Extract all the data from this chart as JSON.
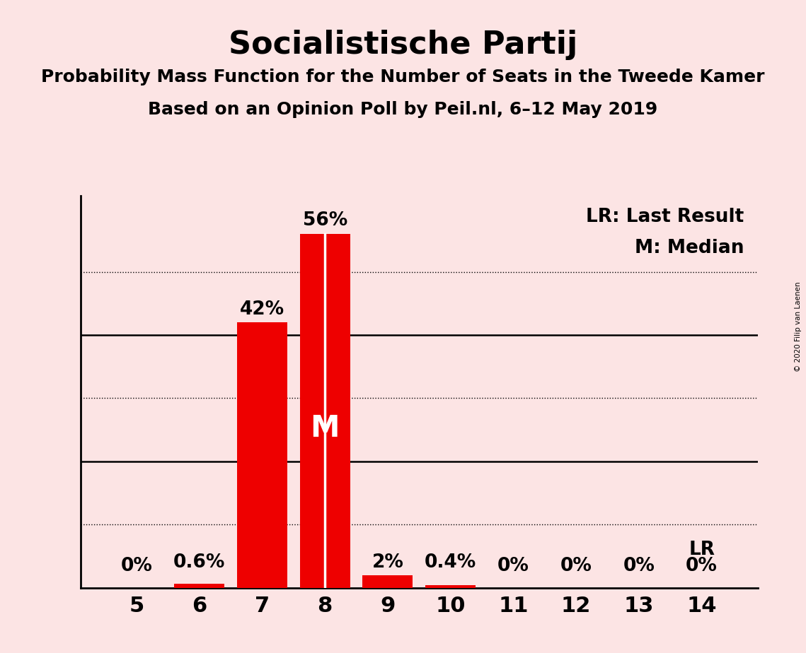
{
  "title": "Socialistische Partij",
  "subtitle1": "Probability Mass Function for the Number of Seats in the Tweede Kamer",
  "subtitle2": "Based on an Opinion Poll by Peil.nl, 6–12 May 2019",
  "copyright": "© 2020 Filip van Laenen",
  "legend_lr": "LR: Last Result",
  "legend_m": "M: Median",
  "categories": [
    5,
    6,
    7,
    8,
    9,
    10,
    11,
    12,
    13,
    14
  ],
  "values": [
    0.0,
    0.6,
    42.0,
    56.0,
    2.0,
    0.4,
    0.0,
    0.0,
    0.0,
    0.0
  ],
  "labels": [
    "0%",
    "0.6%",
    "42%",
    "56%",
    "2%",
    "0.4%",
    "0%",
    "0%",
    "0%",
    "0%"
  ],
  "bar_color": "#ee0000",
  "background_color": "#fce4e4",
  "median_bar": 8,
  "lr_bar": 14,
  "ylim": [
    0,
    62
  ],
  "ytick_solid": [
    20,
    40
  ],
  "ytick_dotted": [
    10,
    30,
    50
  ],
  "ytick_labeled": [
    20,
    40
  ],
  "title_fontsize": 32,
  "subtitle_fontsize": 18,
  "tick_fontsize": 22,
  "label_fontsize": 19,
  "legend_fontsize": 19
}
